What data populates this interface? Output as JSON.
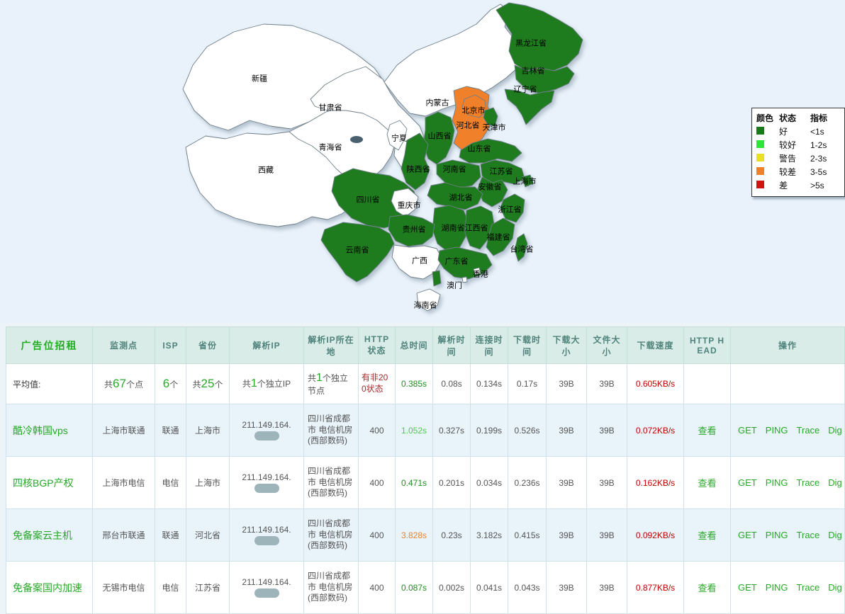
{
  "colors": {
    "map_good": "#1e7c1e",
    "map_poor": "#f0812a",
    "map_none": "#ffffff",
    "link_green": "#28a828",
    "speed_red": "#c00000",
    "warn_orange": "#f0812a",
    "header_teal": "#4f837b"
  },
  "map": {
    "colors": {
      "good": "#1e7c1e",
      "poor": "#f0812a",
      "none": "#ffffff"
    },
    "provinces": [
      {
        "name": "新疆",
        "status": "none"
      },
      {
        "name": "西藏",
        "status": "none"
      },
      {
        "name": "青海省",
        "status": "none"
      },
      {
        "name": "甘肃省",
        "status": "none"
      },
      {
        "name": "内蒙古",
        "status": "none"
      },
      {
        "name": "黑龙江省",
        "status": "good"
      },
      {
        "name": "吉林省",
        "status": "good"
      },
      {
        "name": "辽宁省",
        "status": "good"
      },
      {
        "name": "河北省",
        "status": "poor"
      },
      {
        "name": "北京市",
        "status": "poor"
      },
      {
        "name": "天津市",
        "status": "good"
      },
      {
        "name": "山西省",
        "status": "good"
      },
      {
        "name": "山东省",
        "status": "good"
      },
      {
        "name": "宁夏",
        "status": "none"
      },
      {
        "name": "陕西省",
        "status": "good"
      },
      {
        "name": "河南省",
        "status": "good"
      },
      {
        "name": "江苏省",
        "status": "good"
      },
      {
        "name": "上海市",
        "status": "good"
      },
      {
        "name": "安徽省",
        "status": "good"
      },
      {
        "name": "湖北省",
        "status": "good"
      },
      {
        "name": "四川省",
        "status": "good"
      },
      {
        "name": "重庆市",
        "status": "none"
      },
      {
        "name": "浙江省",
        "status": "good"
      },
      {
        "name": "湖南省",
        "status": "good"
      },
      {
        "name": "江西省",
        "status": "good"
      },
      {
        "name": "福建省",
        "status": "good"
      },
      {
        "name": "贵州省",
        "status": "good"
      },
      {
        "name": "云南省",
        "status": "good"
      },
      {
        "name": "广西",
        "status": "none"
      },
      {
        "name": "广东省",
        "status": "good"
      },
      {
        "name": "台湾省",
        "status": "good"
      },
      {
        "name": "香港",
        "status": "none"
      },
      {
        "name": "澳门",
        "status": "none"
      },
      {
        "name": "海南省",
        "status": "none"
      }
    ]
  },
  "legend": {
    "headers": [
      "颜色",
      "状态",
      "指标"
    ],
    "rows": [
      {
        "color": "#1a7a1a",
        "status": "好",
        "indicator": "<1s"
      },
      {
        "color": "#2ee636",
        "status": "较好",
        "indicator": "1-2s"
      },
      {
        "color": "#e8e020",
        "status": "警告",
        "indicator": "2-3s"
      },
      {
        "color": "#f0812a",
        "status": "较差",
        "indicator": "3-5s"
      },
      {
        "color": "#cc1414",
        "status": "差",
        "indicator": ">5s"
      }
    ]
  },
  "table": {
    "headers": [
      "广告位招租",
      "监测点",
      "ISP",
      "省份",
      "解析IP",
      "解析IP所在地",
      "HTTP状态",
      "总时间",
      "解析时间",
      "连接时间",
      "下载时间",
      "下载大小",
      "文件大小",
      "下载速度",
      "HTTP HEAD",
      "操作"
    ],
    "ops": [
      "GET",
      "PING",
      "Trace",
      "Dig"
    ],
    "avg": {
      "label": "平均值:",
      "points": {
        "pre": "共",
        "num": "67",
        "suf": "个点"
      },
      "isp": {
        "pre": "",
        "num": "6",
        "suf": "个"
      },
      "provinces": {
        "pre": "共",
        "num": "25",
        "suf": "个"
      },
      "ip": {
        "pre": "共",
        "num": "1",
        "suf": "个独立IP"
      },
      "node": {
        "pre": "共",
        "num": "1",
        "suf": "个独立节点"
      },
      "http_status": "有非200状态",
      "total": "0.385s",
      "resolve": "0.08s",
      "connect": "0.134s",
      "download": "0.17s",
      "dl_size": "39B",
      "file_size": "39B",
      "speed": "0.605KB/s"
    },
    "rows": [
      {
        "name": "酷冷韩国vps",
        "point": "上海市联通",
        "isp": "联通",
        "province": "上海市",
        "ip": "211.149.164.",
        "loc": "四川省成都市 电信机房(西部数码)",
        "status": "400",
        "total": "1.052s",
        "resolve": "0.327s",
        "connect": "0.199s",
        "download": "0.526s",
        "dl_size": "39B",
        "file_size": "39B",
        "speed": "0.072KB/s",
        "view": "查看"
      },
      {
        "name": "四核BGP产权",
        "point": "上海市电信",
        "isp": "电信",
        "province": "上海市",
        "ip": "211.149.164.",
        "loc": "四川省成都市 电信机房(西部数码)",
        "status": "400",
        "total": "0.471s",
        "resolve": "0.201s",
        "connect": "0.034s",
        "download": "0.236s",
        "dl_size": "39B",
        "file_size": "39B",
        "speed": "0.162KB/s",
        "view": "查看"
      },
      {
        "name": "免备案云主机",
        "point": "邢台市联通",
        "isp": "联通",
        "province": "河北省",
        "ip": "211.149.164.",
        "loc": "四川省成都市 电信机房(西部数码)",
        "status": "400",
        "total": "3.828s",
        "resolve": "0.23s",
        "connect": "3.182s",
        "download": "0.415s",
        "dl_size": "39B",
        "file_size": "39B",
        "speed": "0.092KB/s",
        "view": "查看"
      },
      {
        "name": "免备案国内加速",
        "point": "无锡市电信",
        "isp": "电信",
        "province": "江苏省",
        "ip": "211.149.164.",
        "loc": "四川省成都市 电信机房(西部数码)",
        "status": "400",
        "total": "0.087s",
        "resolve": "0.002s",
        "connect": "0.041s",
        "download": "0.043s",
        "dl_size": "39B",
        "file_size": "39B",
        "speed": "0.877KB/s",
        "view": "查看"
      }
    ]
  }
}
